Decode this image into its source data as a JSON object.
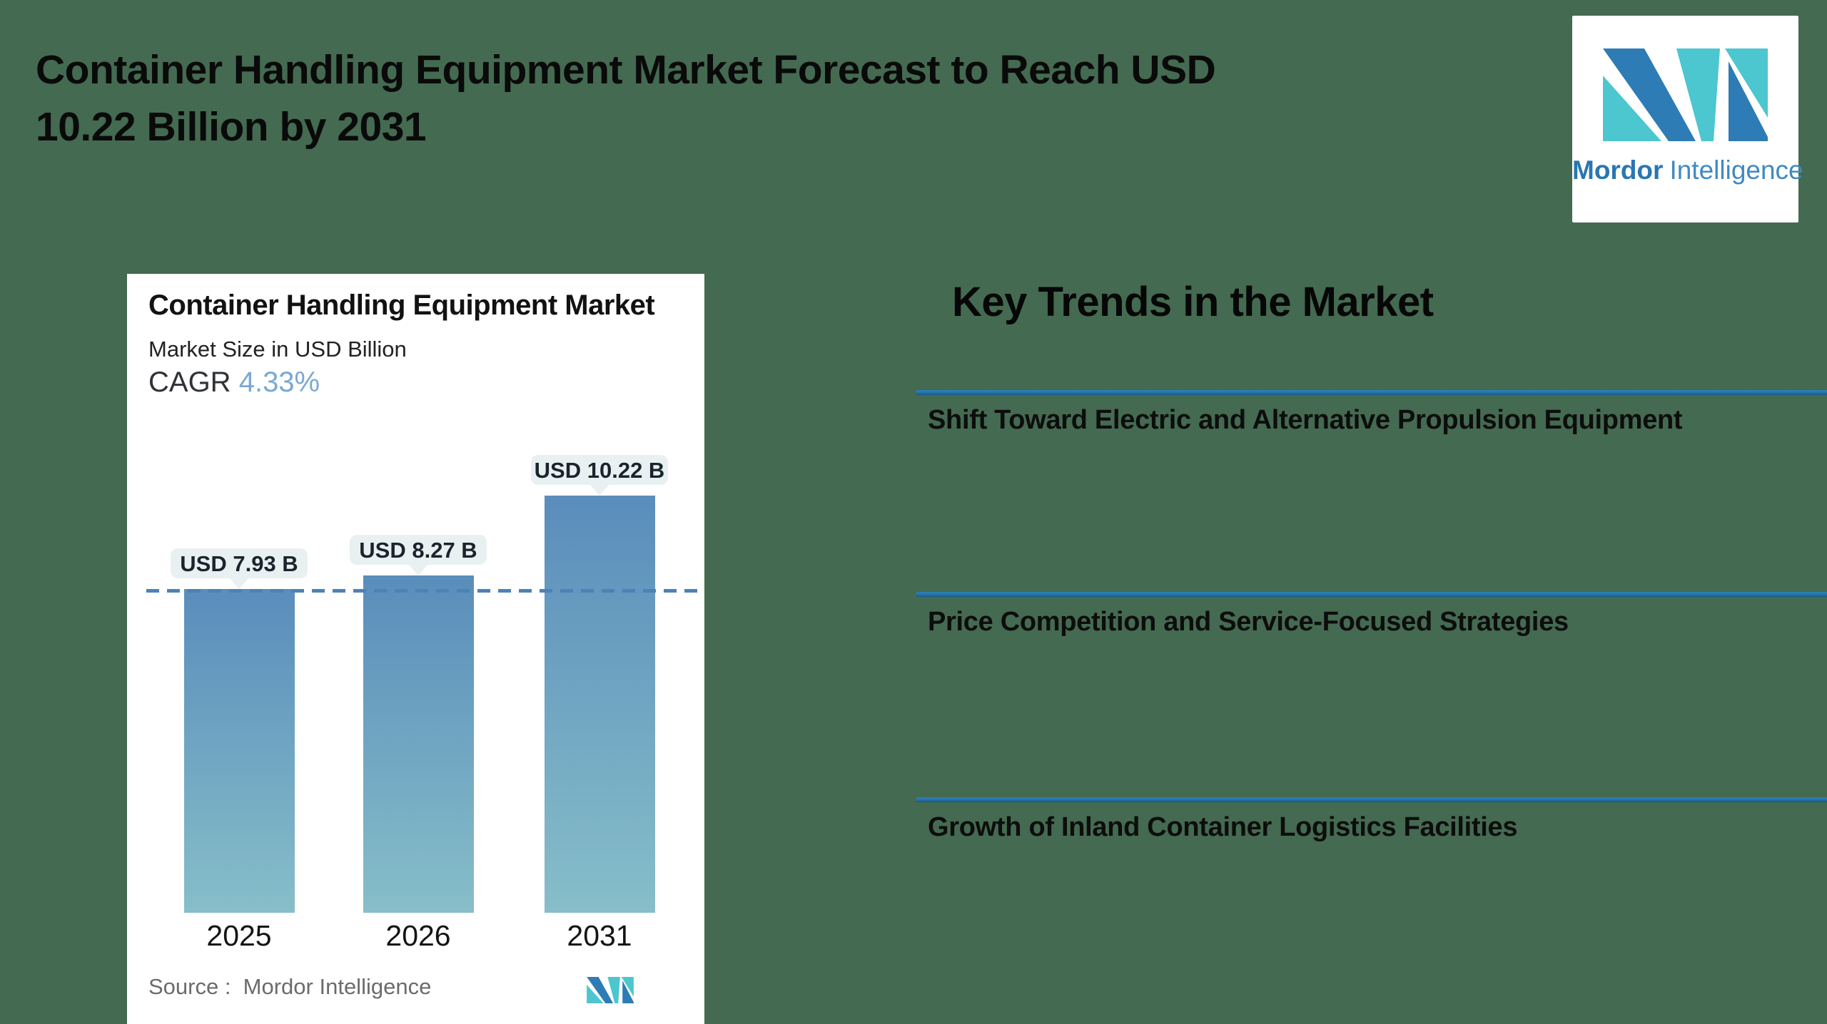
{
  "page": {
    "background_color": "#446a51"
  },
  "header": {
    "title_line1": "Container Handling Equipment Market Forecast to Reach USD",
    "title_line2": "10.22 Billion by 2031"
  },
  "brand": {
    "name_bold": "Mordor",
    "name_light": "Intelligence",
    "logo_blue": "#2e7cb5",
    "logo_teal": "#4cc6cf"
  },
  "chart_card": {
    "title": "Container Handling Equipment Market",
    "subtitle": "Market Size in USD Billion",
    "cagr_label": "CAGR",
    "cagr_value": "4.33%",
    "source": "Source :  Mordor Intelligence"
  },
  "chart_data": {
    "type": "bar",
    "title": "Container Handling Equipment Market",
    "ylabel": "Market Size in USD Billion",
    "categories": [
      "2025",
      "2026",
      "2031"
    ],
    "values": [
      7.93,
      8.27,
      10.22
    ],
    "bar_labels": [
      "USD 7.93 B",
      "USD 8.27 B",
      "USD 10.22 B"
    ],
    "unit": "USD Billion",
    "cagr_percent": 4.33,
    "baseline_value": 7.93,
    "ylim": [
      0,
      12
    ],
    "grid": false,
    "legend": "none",
    "bar_gradient_top": "#5a8dbb",
    "bar_gradient_bottom": "#87bec9",
    "dashed_line_color": "#4d82b6",
    "label_bg_color": "#e9f0f1"
  },
  "key_trends": {
    "heading": "Key Trends in the Market",
    "line_color": "#2273a8",
    "items": [
      "Shift Toward Electric and Alternative Propulsion Equipment",
      "Price Competition and Service-Focused Strategies",
      "Growth of Inland Container Logistics Facilities"
    ]
  }
}
